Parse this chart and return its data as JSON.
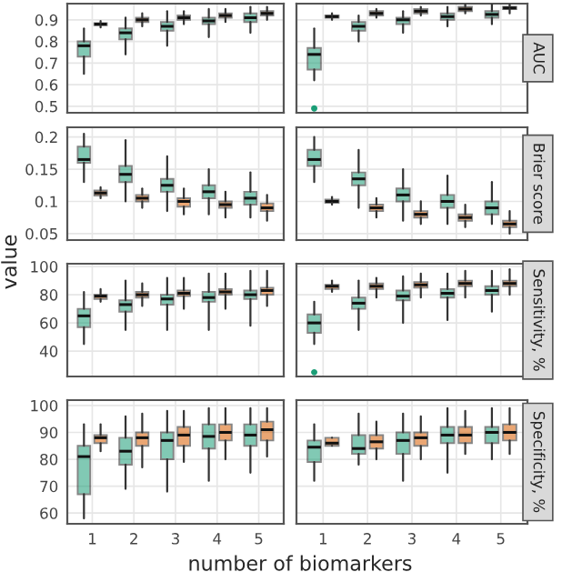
{
  "chart_data": [
    {
      "type": "box",
      "categories": [
        "1",
        "2",
        "3",
        "4",
        "5"
      ],
      "ylim": [
        0.47,
        0.975
      ],
      "yticks": [
        0.5,
        0.6,
        0.7,
        0.8,
        0.9
      ],
      "grid": true,
      "tick_labels": "y",
      "series": [
        {
          "color": "#1b9e77",
          "boxes": [
            {
              "low": 0.65,
              "q1": 0.73,
              "median": 0.78,
              "q3": 0.8,
              "high": 0.86
            },
            {
              "low": 0.74,
              "q1": 0.81,
              "median": 0.84,
              "q3": 0.86,
              "high": 0.91
            },
            {
              "low": 0.78,
              "q1": 0.85,
              "median": 0.87,
              "q3": 0.89,
              "high": 0.94
            },
            {
              "low": 0.82,
              "q1": 0.88,
              "median": 0.895,
              "q3": 0.91,
              "high": 0.95
            },
            {
              "low": 0.84,
              "q1": 0.89,
              "median": 0.91,
              "q3": 0.93,
              "high": 0.96
            }
          ]
        },
        {
          "color": "#d95f02",
          "boxes": [
            {
              "low": 0.865,
              "q1": 0.875,
              "median": 0.88,
              "q3": 0.885,
              "high": 0.895
            },
            {
              "low": 0.87,
              "q1": 0.89,
              "median": 0.9,
              "q3": 0.91,
              "high": 0.93
            },
            {
              "low": 0.88,
              "q1": 0.9,
              "median": 0.91,
              "q3": 0.92,
              "high": 0.94
            },
            {
              "low": 0.89,
              "q1": 0.91,
              "median": 0.92,
              "q3": 0.93,
              "high": 0.95
            },
            {
              "low": 0.9,
              "q1": 0.92,
              "median": 0.93,
              "q3": 0.94,
              "high": 0.96
            }
          ]
        }
      ]
    },
    {
      "type": "box",
      "title": "AUC",
      "categories": [
        "1",
        "2",
        "3",
        "4",
        "5"
      ],
      "ylim": [
        0.47,
        0.975
      ],
      "yticks": [
        0.5,
        0.6,
        0.7,
        0.8,
        0.9
      ],
      "grid": true,
      "tick_labels": false,
      "series": [
        {
          "color": "#1b9e77",
          "boxes": [
            {
              "low": 0.62,
              "q1": 0.67,
              "median": 0.74,
              "q3": 0.77,
              "high": 0.86,
              "outliers": [
                0.49
              ]
            },
            {
              "low": 0.8,
              "q1": 0.85,
              "median": 0.87,
              "q3": 0.89,
              "high": 0.92
            },
            {
              "low": 0.84,
              "q1": 0.88,
              "median": 0.9,
              "q3": 0.91,
              "high": 0.94
            },
            {
              "low": 0.87,
              "q1": 0.9,
              "median": 0.915,
              "q3": 0.93,
              "high": 0.96
            },
            {
              "low": 0.88,
              "q1": 0.91,
              "median": 0.925,
              "q3": 0.94,
              "high": 0.97
            }
          ]
        },
        {
          "color": "#d95f02",
          "boxes": [
            {
              "low": 0.9,
              "q1": 0.91,
              "median": 0.915,
              "q3": 0.92,
              "high": 0.93
            },
            {
              "low": 0.91,
              "q1": 0.92,
              "median": 0.93,
              "q3": 0.94,
              "high": 0.95
            },
            {
              "low": 0.92,
              "q1": 0.93,
              "median": 0.94,
              "q3": 0.95,
              "high": 0.96
            },
            {
              "low": 0.93,
              "q1": 0.94,
              "median": 0.95,
              "q3": 0.96,
              "high": 0.97
            },
            {
              "low": 0.93,
              "q1": 0.95,
              "median": 0.955,
              "q3": 0.96,
              "high": 0.97
            }
          ]
        }
      ]
    },
    {
      "type": "box",
      "ylabel": "value",
      "categories": [
        "1",
        "2",
        "3",
        "4",
        "5"
      ],
      "ylim": [
        0.04,
        0.215
      ],
      "yticks": [
        0.05,
        0.1,
        0.15,
        0.2
      ],
      "grid": true,
      "tick_labels": "y",
      "series": [
        {
          "color": "#1b9e77",
          "boxes": [
            {
              "low": 0.13,
              "q1": 0.16,
              "median": 0.165,
              "q3": 0.185,
              "high": 0.205
            },
            {
              "low": 0.1,
              "q1": 0.13,
              "median": 0.142,
              "q3": 0.155,
              "high": 0.195
            },
            {
              "low": 0.085,
              "q1": 0.115,
              "median": 0.125,
              "q3": 0.135,
              "high": 0.17
            },
            {
              "low": 0.08,
              "q1": 0.105,
              "median": 0.115,
              "q3": 0.125,
              "high": 0.15
            },
            {
              "low": 0.075,
              "q1": 0.095,
              "median": 0.105,
              "q3": 0.115,
              "high": 0.145
            }
          ]
        },
        {
          "color": "#d95f02",
          "boxes": [
            {
              "low": 0.105,
              "q1": 0.109,
              "median": 0.113,
              "q3": 0.117,
              "high": 0.122
            },
            {
              "low": 0.09,
              "q1": 0.1,
              "median": 0.105,
              "q3": 0.11,
              "high": 0.12
            },
            {
              "low": 0.08,
              "q1": 0.092,
              "median": 0.1,
              "q3": 0.105,
              "high": 0.12
            },
            {
              "low": 0.075,
              "q1": 0.09,
              "median": 0.095,
              "q3": 0.1,
              "high": 0.115
            },
            {
              "low": 0.07,
              "q1": 0.085,
              "median": 0.09,
              "q3": 0.097,
              "high": 0.11
            }
          ]
        }
      ]
    },
    {
      "type": "box",
      "title": "Brier score",
      "categories": [
        "1",
        "2",
        "3",
        "4",
        "5"
      ],
      "ylim": [
        0.04,
        0.215
      ],
      "yticks": [
        0.05,
        0.1,
        0.15,
        0.2
      ],
      "grid": true,
      "tick_labels": false,
      "series": [
        {
          "color": "#1b9e77",
          "boxes": [
            {
              "low": 0.13,
              "q1": 0.155,
              "median": 0.165,
              "q3": 0.18,
              "high": 0.2
            },
            {
              "low": 0.09,
              "q1": 0.125,
              "median": 0.135,
              "q3": 0.145,
              "high": 0.18
            },
            {
              "low": 0.07,
              "q1": 0.1,
              "median": 0.11,
              "q3": 0.12,
              "high": 0.15
            },
            {
              "low": 0.065,
              "q1": 0.09,
              "median": 0.1,
              "q3": 0.11,
              "high": 0.14
            },
            {
              "low": 0.065,
              "q1": 0.08,
              "median": 0.09,
              "q3": 0.1,
              "high": 0.13
            }
          ]
        },
        {
          "color": "#d95f02",
          "boxes": [
            {
              "low": 0.095,
              "q1": 0.098,
              "median": 0.1,
              "q3": 0.103,
              "high": 0.107
            },
            {
              "low": 0.075,
              "q1": 0.085,
              "median": 0.09,
              "q3": 0.095,
              "high": 0.105
            },
            {
              "low": 0.065,
              "q1": 0.075,
              "median": 0.08,
              "q3": 0.085,
              "high": 0.1
            },
            {
              "low": 0.06,
              "q1": 0.07,
              "median": 0.075,
              "q3": 0.08,
              "high": 0.095
            },
            {
              "low": 0.05,
              "q1": 0.06,
              "median": 0.065,
              "q3": 0.07,
              "high": 0.085
            }
          ]
        }
      ]
    },
    {
      "type": "box",
      "categories": [
        "1",
        "2",
        "3",
        "4",
        "5"
      ],
      "ylim": [
        22,
        102
      ],
      "yticks": [
        40,
        60,
        80,
        100
      ],
      "grid": true,
      "tick_labels": "y",
      "series": [
        {
          "color": "#1b9e77",
          "boxes": [
            {
              "low": 45,
              "q1": 57,
              "median": 65,
              "q3": 70,
              "high": 82
            },
            {
              "low": 55,
              "q1": 68,
              "median": 73,
              "q3": 76,
              "high": 90
            },
            {
              "low": 55,
              "q1": 73,
              "median": 77,
              "q3": 80,
              "high": 92
            },
            {
              "low": 55,
              "q1": 75,
              "median": 78,
              "q3": 82,
              "high": 95
            },
            {
              "low": 58,
              "q1": 77,
              "median": 80,
              "q3": 83,
              "high": 97
            }
          ]
        },
        {
          "color": "#d95f02",
          "boxes": [
            {
              "low": 75,
              "q1": 77,
              "median": 79,
              "q3": 80,
              "high": 84
            },
            {
              "low": 72,
              "q1": 78,
              "median": 80,
              "q3": 82,
              "high": 88
            },
            {
              "low": 70,
              "q1": 79,
              "median": 81,
              "q3": 83,
              "high": 92
            },
            {
              "low": 70,
              "q1": 80,
              "median": 82,
              "q3": 84,
              "high": 95
            },
            {
              "low": 72,
              "q1": 80,
              "median": 83,
              "q3": 85,
              "high": 97
            }
          ]
        }
      ]
    },
    {
      "type": "box",
      "title": "Sensitivity, %",
      "categories": [
        "1",
        "2",
        "3",
        "4",
        "5"
      ],
      "ylim": [
        22,
        102
      ],
      "yticks": [
        40,
        60,
        80,
        100
      ],
      "grid": true,
      "tick_labels": false,
      "series": [
        {
          "color": "#1b9e77",
          "boxes": [
            {
              "low": 45,
              "q1": 53,
              "median": 60,
              "q3": 66,
              "high": 75,
              "outliers": [
                25
              ]
            },
            {
              "low": 55,
              "q1": 70,
              "median": 74,
              "q3": 78,
              "high": 90
            },
            {
              "low": 60,
              "q1": 76,
              "median": 79,
              "q3": 83,
              "high": 93
            },
            {
              "low": 62,
              "q1": 78,
              "median": 81,
              "q3": 84,
              "high": 95
            },
            {
              "low": 68,
              "q1": 80,
              "median": 83,
              "q3": 86,
              "high": 97
            }
          ]
        },
        {
          "color": "#d95f02",
          "boxes": [
            {
              "low": 82,
              "q1": 84,
              "median": 86,
              "q3": 87,
              "high": 90
            },
            {
              "low": 78,
              "q1": 84,
              "median": 86,
              "q3": 88,
              "high": 92
            },
            {
              "low": 78,
              "q1": 85,
              "median": 87,
              "q3": 89,
              "high": 95
            },
            {
              "low": 78,
              "q1": 86,
              "median": 88,
              "q3": 90,
              "high": 97
            },
            {
              "low": 80,
              "q1": 86,
              "median": 88,
              "q3": 90,
              "high": 98
            }
          ]
        }
      ]
    },
    {
      "type": "box",
      "xlabel": "number of biomarkers",
      "categories": [
        "1",
        "2",
        "3",
        "4",
        "5"
      ],
      "ylim": [
        56,
        102
      ],
      "yticks": [
        60,
        70,
        80,
        90,
        100
      ],
      "grid": true,
      "series": [
        {
          "color": "#1b9e77",
          "boxes": [
            {
              "low": 58,
              "q1": 67,
              "median": 81,
              "q3": 85,
              "high": 93
            },
            {
              "low": 69,
              "q1": 78,
              "median": 83,
              "q3": 88,
              "high": 96
            },
            {
              "low": 68,
              "q1": 80,
              "median": 87,
              "q3": 90,
              "high": 98
            },
            {
              "low": 72,
              "q1": 84,
              "median": 88.5,
              "q3": 93,
              "high": 99
            },
            {
              "low": 75,
              "q1": 85,
              "median": 89,
              "q3": 93,
              "high": 99
            }
          ]
        },
        {
          "color": "#d95f02",
          "boxes": [
            {
              "low": 83,
              "q1": 86,
              "median": 88,
              "q3": 89,
              "high": 93
            },
            {
              "low": 77,
              "q1": 85,
              "median": 88,
              "q3": 90,
              "high": 97
            },
            {
              "low": 79,
              "q1": 85,
              "median": 89,
              "q3": 92,
              "high": 98
            },
            {
              "low": 80,
              "q1": 87,
              "median": 90,
              "q3": 93,
              "high": 99
            },
            {
              "low": 81,
              "q1": 87,
              "median": 91,
              "q3": 94,
              "high": 99
            }
          ]
        }
      ]
    },
    {
      "type": "box",
      "title": "Specificity, %",
      "categories": [
        "1",
        "2",
        "3",
        "4",
        "5"
      ],
      "ylim": [
        56,
        102
      ],
      "yticks": [
        60,
        70,
        80,
        90,
        100
      ],
      "grid": true,
      "tick_labels": "x",
      "series": [
        {
          "color": "#1b9e77",
          "boxes": [
            {
              "low": 72,
              "q1": 79,
              "median": 84.5,
              "q3": 87,
              "high": 93
            },
            {
              "low": 78,
              "q1": 82,
              "median": 84,
              "q3": 89,
              "high": 97
            },
            {
              "low": 72,
              "q1": 82,
              "median": 87,
              "q3": 90,
              "high": 97
            },
            {
              "low": 75,
              "q1": 86,
              "median": 89,
              "q3": 92,
              "high": 99
            },
            {
              "low": 80,
              "q1": 86,
              "median": 90,
              "q3": 92,
              "high": 99
            }
          ]
        },
        {
          "color": "#d95f02",
          "boxes": [
            {
              "low": 85,
              "q1": 85,
              "median": 86,
              "q3": 88,
              "high": 88
            },
            {
              "low": 80,
              "q1": 84,
              "median": 86.5,
              "q3": 89,
              "high": 94
            },
            {
              "low": 80,
              "q1": 85,
              "median": 88,
              "q3": 90,
              "high": 96
            },
            {
              "low": 82,
              "q1": 86,
              "median": 89,
              "q3": 92,
              "high": 98
            },
            {
              "low": 82,
              "q1": 87,
              "median": 90,
              "q3": 93,
              "high": 99
            }
          ]
        }
      ]
    }
  ]
}
